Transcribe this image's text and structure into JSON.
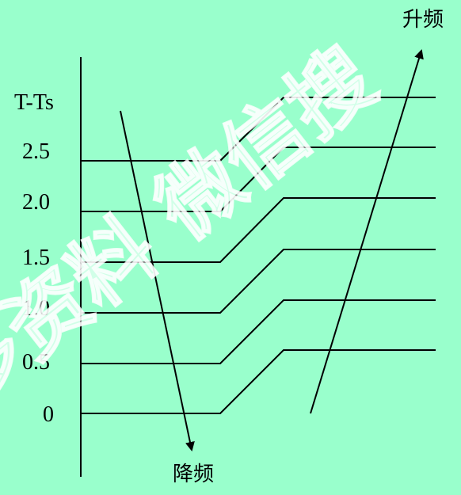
{
  "diagram": {
    "y_axis_title": "T-Ts",
    "y_levels": [
      "2.5",
      "2.0",
      "1.5",
      "1.0",
      "0.5",
      "0"
    ],
    "arrow_up_label": "升频",
    "arrow_down_label": "降频",
    "watermark": "多资料 微信搜",
    "colors": {
      "background": "#99ffcc",
      "line": "#000000",
      "watermark": "#ffffff"
    }
  }
}
